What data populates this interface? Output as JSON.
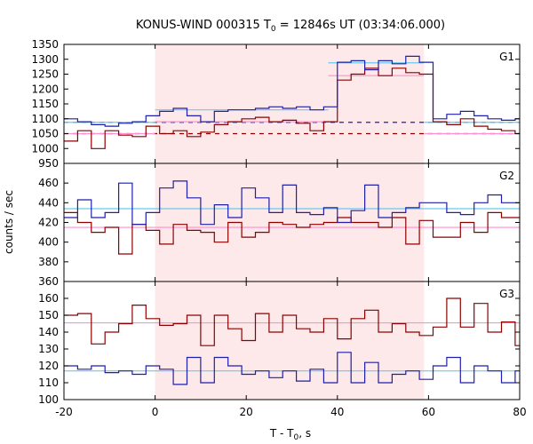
{
  "chart_data": {
    "type": "line",
    "title_main": "KONUS-WIND 000315 T",
    "title_sub": "0",
    "title_rest": " = 12846s UT (03:34:06.000)",
    "xlabel_main": "T - T",
    "xlabel_sub": "0",
    "xlabel_rest": ", s",
    "ylabel": "counts / sec",
    "xlim": [
      -20,
      80
    ],
    "xticks": [
      "-20",
      "0",
      "20",
      "40",
      "60",
      "80"
    ],
    "xtick_values": [
      -20,
      0,
      20,
      40,
      60,
      80
    ],
    "highlight_interval": [
      0,
      59
    ],
    "colors": {
      "red": "#8b0000",
      "blue": "#1f1faa",
      "pink_fit": "#ff8fcf",
      "cyan_fit": "#66ccee",
      "highlight": "#fde8ea"
    },
    "bin_edges": [
      -20,
      -17,
      -14,
      -11,
      -8,
      -5,
      -2,
      1,
      4,
      7,
      10,
      13,
      16,
      19,
      22,
      25,
      28,
      31,
      34,
      37,
      40,
      43,
      46,
      49,
      52,
      55,
      58,
      61,
      64,
      67,
      70,
      73,
      76,
      79,
      80
    ],
    "panels": [
      {
        "label": "G1",
        "ylim": [
          950,
          1350
        ],
        "yticks": [
          950,
          1000,
          1050,
          1100,
          1150,
          1200,
          1250,
          1300,
          1350
        ],
        "series": [
          {
            "color": "red",
            "values": [
              1025,
              1060,
              1000,
              1060,
              1045,
              1040,
              1075,
              1050,
              1060,
              1040,
              1055,
              1080,
              1090,
              1100,
              1105,
              1090,
              1095,
              1085,
              1060,
              1090,
              1230,
              1250,
              1270,
              1245,
              1270,
              1255,
              1250,
              1090,
              1080,
              1100,
              1075,
              1065,
              1060,
              1050
            ]
          },
          {
            "color": "blue",
            "values": [
              1100,
              1090,
              1080,
              1075,
              1085,
              1090,
              1110,
              1125,
              1135,
              1110,
              1090,
              1125,
              1130,
              1130,
              1135,
              1140,
              1135,
              1140,
              1130,
              1140,
              1290,
              1295,
              1265,
              1295,
              1285,
              1310,
              1290,
              1100,
              1115,
              1125,
              1110,
              1100,
              1095,
              1100
            ]
          }
        ],
        "fits": [
          {
            "color": "pink_fit",
            "segments": [
              {
                "x": [
                  -20,
                  0
                ],
                "y": 1050
              },
              {
                "x": [
                  0,
                  38
                ],
                "y": 1090
              },
              {
                "x": [
                  38,
                  59
                ],
                "y": 1245
              },
              {
                "x": [
                  59,
                  80
                ],
                "y": 1050
              }
            ]
          },
          {
            "color": "cyan_fit",
            "segments": [
              {
                "x": [
                  -20,
                  0
                ],
                "y": 1088
              },
              {
                "x": [
                  0,
                  38
                ],
                "y": 1130
              },
              {
                "x": [
                  38,
                  59
                ],
                "y": 1288
              },
              {
                "x": [
                  59,
                  80
                ],
                "y": 1088
              }
            ]
          }
        ],
        "dashed_baselines": [
          {
            "color": "red",
            "y": 1050
          },
          {
            "color": "blue",
            "y": 1088
          }
        ]
      },
      {
        "label": "G2",
        "ylim": [
          360,
          480
        ],
        "yticks": [
          360,
          380,
          400,
          420,
          440,
          460
        ],
        "series": [
          {
            "color": "red",
            "values": [
              430,
              420,
              410,
              415,
              388,
              418,
              412,
              398,
              418,
              412,
              410,
              400,
              420,
              405,
              410,
              420,
              418,
              415,
              418,
              420,
              425,
              420,
              420,
              415,
              425,
              398,
              422,
              405,
              405,
              420,
              410,
              430,
              425,
              425
            ]
          },
          {
            "color": "blue",
            "values": [
              425,
              443,
              425,
              430,
              460,
              418,
              430,
              455,
              462,
              445,
              418,
              438,
              425,
              455,
              445,
              430,
              458,
              430,
              428,
              435,
              420,
              432,
              458,
              425,
              430,
              435,
              440,
              440,
              430,
              428,
              440,
              448,
              440,
              440
            ]
          }
        ],
        "fits": [
          {
            "color": "pink_fit",
            "segments": [
              {
                "x": [
                  -20,
                  80
                ],
                "y": 415
              }
            ]
          },
          {
            "color": "cyan_fit",
            "segments": [
              {
                "x": [
                  -20,
                  80
                ],
                "y": 434
              }
            ]
          }
        ],
        "dashed_baselines": []
      },
      {
        "label": "G3",
        "ylim": [
          100,
          170
        ],
        "yticks": [
          100,
          110,
          120,
          130,
          140,
          150,
          160
        ],
        "series": [
          {
            "color": "red",
            "values": [
              150,
              151,
              133,
              140,
              145,
              156,
              148,
              144,
              145,
              150,
              132,
              150,
              142,
              135,
              151,
              140,
              150,
              142,
              140,
              148,
              136,
              148,
              153,
              140,
              145,
              140,
              138,
              143,
              160,
              143,
              157,
              140,
              146,
              132
            ]
          },
          {
            "color": "blue",
            "values": [
              120,
              118,
              120,
              116,
              117,
              115,
              120,
              118,
              109,
              125,
              110,
              125,
              120,
              115,
              117,
              113,
              117,
              111,
              118,
              110,
              128,
              110,
              122,
              110,
              115,
              117,
              112,
              120,
              125,
              110,
              120,
              117,
              110,
              117
            ]
          }
        ],
        "fits": [
          {
            "color": "pink_fit",
            "segments": [
              {
                "x": [
                  -20,
                  80
                ],
                "y": 145.5
              }
            ]
          },
          {
            "color": "cyan_fit",
            "segments": [
              {
                "x": [
                  -20,
                  80
                ],
                "y": 117
              }
            ]
          }
        ],
        "dashed_baselines": []
      }
    ]
  }
}
